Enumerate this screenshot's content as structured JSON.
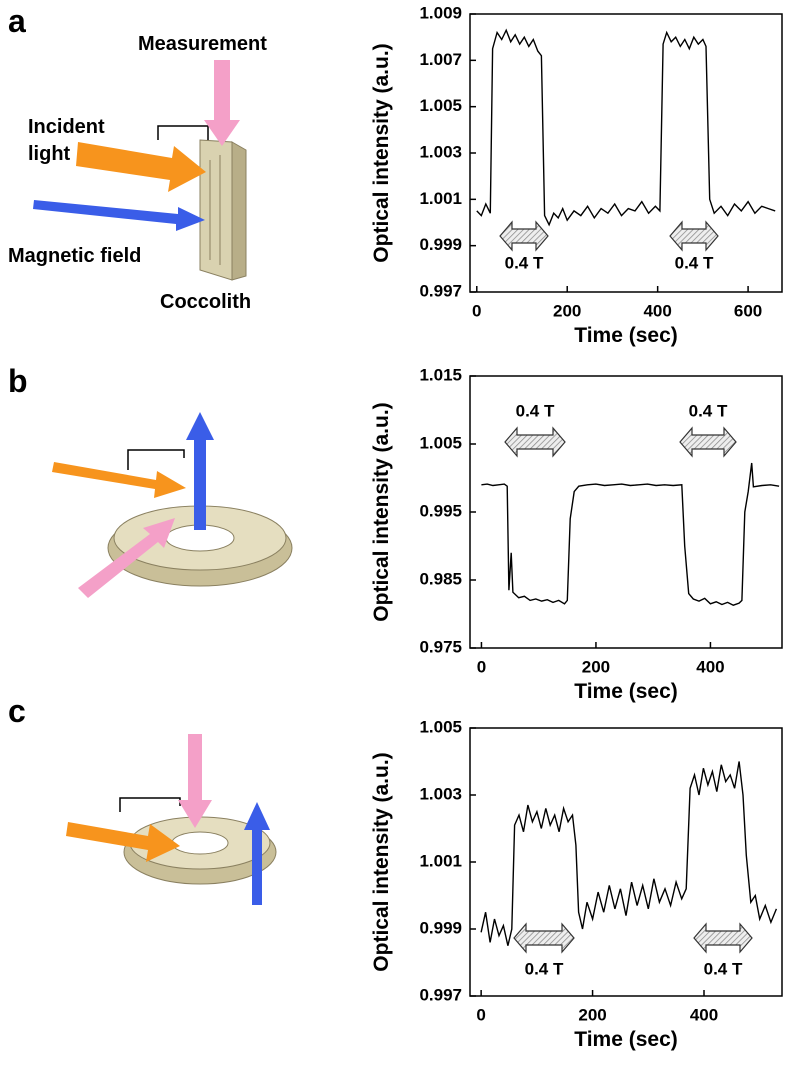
{
  "chart_data": [
    {
      "type": "line",
      "xlabel": "Time (sec)",
      "ylabel": "Optical intensity (a.u.)",
      "color": "#000000",
      "xlim": [
        -15,
        675
      ],
      "ylim": [
        0.997,
        1.009
      ],
      "xticks": [
        0,
        200,
        400,
        600
      ],
      "yticks": [
        0.997,
        0.999,
        1.001,
        1.003,
        1.005,
        1.007,
        1.009
      ],
      "annotations": [
        "0.4 T",
        "0.4 T"
      ],
      "x": [
        0,
        10,
        20,
        30,
        35,
        45,
        55,
        65,
        75,
        85,
        95,
        105,
        115,
        125,
        135,
        143,
        150,
        160,
        170,
        180,
        190,
        200,
        215,
        230,
        245,
        260,
        275,
        290,
        305,
        320,
        335,
        350,
        365,
        380,
        395,
        405,
        412,
        420,
        430,
        440,
        450,
        460,
        470,
        480,
        490,
        500,
        507,
        515,
        525,
        540,
        555,
        570,
        585,
        600,
        615,
        630,
        645,
        660
      ],
      "values": [
        1.0005,
        1.0003,
        1.0008,
        1.0004,
        1.0075,
        1.0082,
        1.0079,
        1.0083,
        1.0078,
        1.0081,
        1.0077,
        1.008,
        1.0076,
        1.0079,
        1.0074,
        1.0072,
        1.0003,
        0.9999,
        1.0004,
        1.0002,
        1.0006,
        1.0001,
        1.0005,
        1.0003,
        1.0007,
        1.0002,
        1.0006,
        1.0004,
        1.0008,
        1.0003,
        1.0006,
        1.0005,
        1.0009,
        1.0004,
        1.0007,
        1.0005,
        1.0077,
        1.0082,
        1.0078,
        1.008,
        1.0076,
        1.0079,
        1.0075,
        1.008,
        1.0077,
        1.0079,
        1.0076,
        1.001,
        1.0004,
        1.0007,
        1.0003,
        1.0008,
        1.0005,
        1.0009,
        1.0004,
        1.0007,
        1.0006,
        1.0005
      ]
    },
    {
      "type": "line",
      "xlabel": "Time (sec)",
      "ylabel": "Optical intensity (a.u.)",
      "color": "#000000",
      "xlim": [
        -20,
        525
      ],
      "ylim": [
        0.975,
        1.015
      ],
      "xticks": [
        0,
        200,
        400
      ],
      "yticks": [
        0.975,
        0.985,
        0.995,
        1.005,
        1.015
      ],
      "annotations": [
        "0.4 T",
        "0.4 T"
      ],
      "x": [
        0,
        10,
        20,
        30,
        40,
        45,
        48,
        52,
        55,
        65,
        75,
        85,
        95,
        105,
        115,
        125,
        135,
        145,
        150,
        155,
        162,
        170,
        185,
        200,
        215,
        230,
        245,
        260,
        275,
        290,
        305,
        320,
        335,
        350,
        355,
        362,
        370,
        380,
        390,
        400,
        410,
        420,
        430,
        440,
        450,
        455,
        460,
        466,
        472,
        475,
        490,
        505,
        520
      ],
      "values": [
        0.999,
        0.9991,
        0.9989,
        0.999,
        0.9991,
        0.9988,
        0.9835,
        0.989,
        0.9832,
        0.9824,
        0.9826,
        0.982,
        0.9822,
        0.9819,
        0.9821,
        0.9817,
        0.982,
        0.9815,
        0.982,
        0.994,
        0.998,
        0.9988,
        0.999,
        0.9991,
        0.9989,
        0.999,
        0.9991,
        0.9989,
        0.999,
        0.9991,
        0.9989,
        0.999,
        0.9989,
        0.999,
        0.99,
        0.983,
        0.9822,
        0.9819,
        0.9823,
        0.9815,
        0.9818,
        0.9814,
        0.9817,
        0.9813,
        0.9816,
        0.982,
        0.995,
        0.998,
        1.0022,
        0.9987,
        0.9989,
        0.999,
        0.9988
      ]
    },
    {
      "type": "line",
      "xlabel": "Time (sec)",
      "ylabel": "Optical intensity (a.u.)",
      "color": "#000000",
      "xlim": [
        -20,
        540
      ],
      "ylim": [
        0.997,
        1.005
      ],
      "xticks": [
        0,
        200,
        400
      ],
      "yticks": [
        0.997,
        0.999,
        1.001,
        1.003,
        1.005
      ],
      "annotations": [
        "0.4 T",
        "0.4 T"
      ],
      "x": [
        0,
        8,
        16,
        24,
        32,
        40,
        48,
        55,
        60,
        68,
        76,
        84,
        92,
        100,
        108,
        116,
        124,
        132,
        140,
        148,
        156,
        164,
        170,
        175,
        182,
        190,
        200,
        210,
        220,
        230,
        240,
        250,
        260,
        270,
        280,
        290,
        300,
        310,
        320,
        330,
        340,
        350,
        360,
        368,
        375,
        383,
        391,
        399,
        407,
        415,
        423,
        431,
        439,
        447,
        455,
        463,
        470,
        476,
        484,
        492,
        500,
        510,
        520,
        530
      ],
      "values": [
        0.9989,
        0.9995,
        0.9986,
        0.9993,
        0.9988,
        0.9991,
        0.9985,
        0.999,
        1.0021,
        1.0024,
        1.0019,
        1.0027,
        1.0022,
        1.0025,
        1.002,
        1.0026,
        1.0021,
        1.0024,
        1.0019,
        1.0026,
        1.0022,
        1.0024,
        1.0015,
        0.9995,
        0.999,
        0.9998,
        0.9993,
        1.0001,
        0.9995,
        1.0003,
        0.9996,
        1.0002,
        0.9994,
        1.0004,
        0.9997,
        1.0003,
        0.9996,
        1.0005,
        0.9998,
        1.0002,
        0.9997,
        1.0004,
        0.9999,
        1.0002,
        1.0032,
        1.0036,
        1.003,
        1.0038,
        1.0033,
        1.0037,
        1.0031,
        1.0039,
        1.0034,
        1.0036,
        1.0032,
        1.004,
        1.003,
        1.0012,
        0.9998,
        1.0,
        0.9993,
        0.9997,
        0.9992,
        0.9996
      ]
    }
  ],
  "figure": {
    "panel_letters": [
      "a",
      "b",
      "c"
    ],
    "measurement": "Measurement",
    "incident_light": [
      "Incident",
      "light"
    ],
    "magnetic_field": "Magnetic field",
    "coccolith": "Coccolith"
  }
}
